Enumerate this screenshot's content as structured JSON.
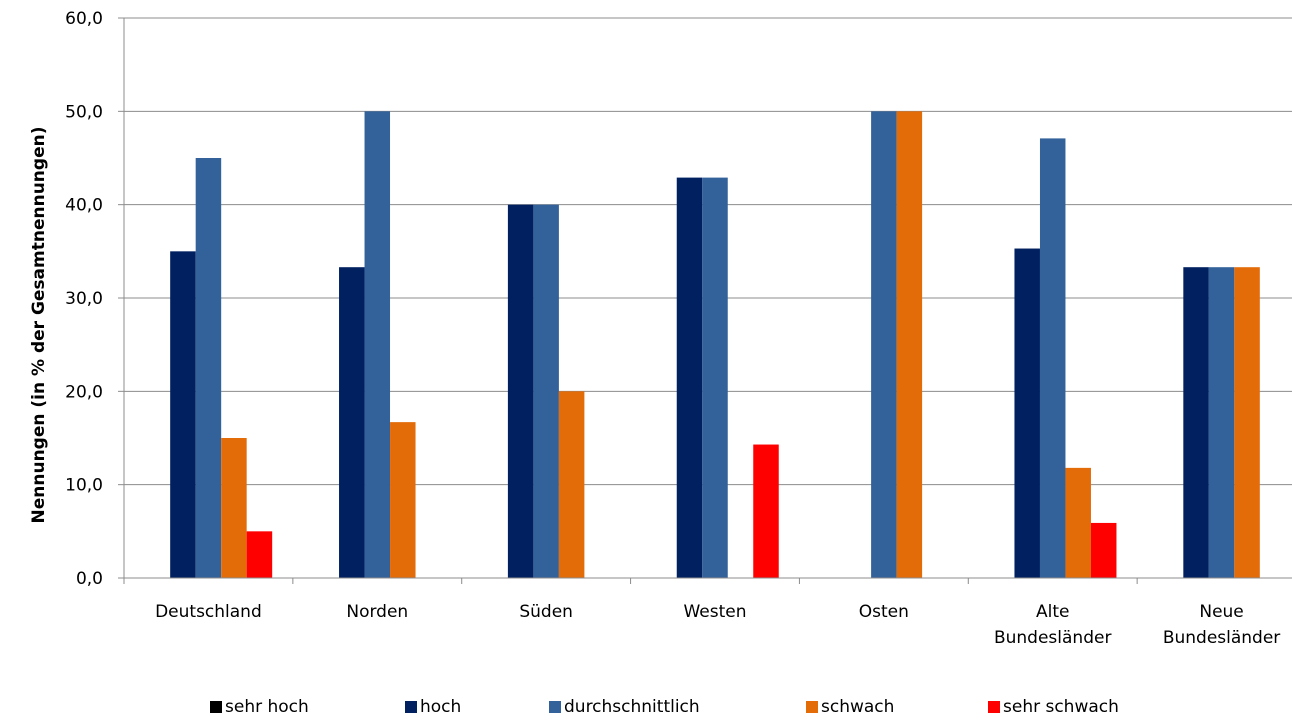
{
  "chart_data": {
    "type": "bar",
    "title": "",
    "xlabel": "",
    "ylabel": "Nennungen (in % der Gesamtnennungen)",
    "ylim": [
      0,
      60
    ],
    "yticks": [
      "0,0",
      "10,0",
      "20,0",
      "30,0",
      "40,0",
      "50,0",
      "60,0"
    ],
    "grid": true,
    "legend_position": "bottom",
    "categories": [
      [
        "Deutschland"
      ],
      [
        "Norden"
      ],
      [
        "Süden"
      ],
      [
        "Westen"
      ],
      [
        "Osten"
      ],
      [
        "Alte",
        "Bundesländer"
      ],
      [
        "Neue",
        "Bundesländer"
      ]
    ],
    "series": [
      {
        "name": "sehr hoch",
        "color": "#000000",
        "values": [
          0,
          0,
          0,
          0,
          0,
          0,
          0
        ]
      },
      {
        "name": "hoch",
        "color": "#002060",
        "values": [
          35.0,
          33.3,
          40.0,
          42.9,
          0,
          35.3,
          33.3
        ]
      },
      {
        "name": "durchschnittlich",
        "color": "#336199",
        "values": [
          45.0,
          50.0,
          40.0,
          42.9,
          50.0,
          47.1,
          33.3
        ]
      },
      {
        "name": "schwach",
        "color": "#E36C09",
        "values": [
          15.0,
          16.7,
          20.0,
          0,
          50.0,
          11.8,
          33.3
        ]
      },
      {
        "name": "sehr schwach",
        "color": "#FF0000",
        "values": [
          5.0,
          0,
          0,
          14.3,
          0,
          5.9,
          0
        ]
      }
    ]
  }
}
